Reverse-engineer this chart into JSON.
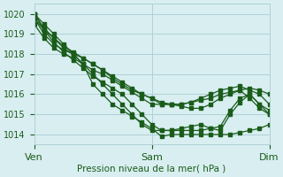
{
  "title": "Pression niveau de la mer( hPa )",
  "bg_color": "#d8eef0",
  "grid_color": "#b0d0d8",
  "line_color": "#1a5c1a",
  "marker_color": "#1a5c1a",
  "xtick_labels": [
    "Ven",
    "Sam",
    "Dim"
  ],
  "xtick_positions": [
    0,
    48,
    96
  ],
  "ylim": [
    1013.5,
    1020.5
  ],
  "yticks": [
    1014,
    1015,
    1016,
    1017,
    1018,
    1019,
    1020
  ],
  "xlim": [
    0,
    96
  ],
  "series": [
    {
      "x": [
        0,
        4,
        8,
        12,
        16,
        20,
        24,
        28,
        32,
        36,
        40,
        44,
        48,
        52,
        56,
        60,
        64,
        68,
        72,
        76,
        80,
        84,
        88,
        92,
        96
      ],
      "y": [
        1020,
        1019.5,
        1019.0,
        1018.5,
        1018.0,
        1017.5,
        1016.5,
        1016.0,
        1015.5,
        1015.2,
        1014.9,
        1014.6,
        1014.3,
        1013.9,
        1014.0,
        1014.0,
        1014.0,
        1014.0,
        1014.0,
        1014.0,
        1014.0,
        1014.1,
        1014.2,
        1014.3,
        1014.5
      ]
    },
    {
      "x": [
        0,
        4,
        8,
        12,
        16,
        20,
        24,
        28,
        32,
        36,
        40,
        44,
        48,
        52,
        56,
        60,
        64,
        68,
        72,
        76,
        80,
        84,
        88,
        92,
        96
      ],
      "y": [
        1020,
        1019.3,
        1018.8,
        1018.3,
        1018.0,
        1017.5,
        1017.0,
        1016.5,
        1016.0,
        1015.5,
        1015.0,
        1014.5,
        1014.2,
        1014.2,
        1014.2,
        1014.2,
        1014.2,
        1014.2,
        1014.3,
        1014.4,
        1015.2,
        1015.8,
        1016.0,
        1015.5,
        1015.2
      ]
    },
    {
      "x": [
        0,
        4,
        8,
        12,
        16,
        20,
        24,
        28,
        32,
        36,
        40,
        44,
        48,
        52,
        56,
        60,
        64,
        68,
        72,
        76,
        80,
        84,
        88,
        92,
        96
      ],
      "y": [
        1019.8,
        1019.0,
        1018.5,
        1018.2,
        1018.0,
        1017.8,
        1017.5,
        1017.2,
        1016.8,
        1016.5,
        1016.2,
        1016.0,
        1015.8,
        1015.5,
        1015.5,
        1015.5,
        1015.6,
        1015.7,
        1015.8,
        1016.0,
        1016.1,
        1016.2,
        1016.3,
        1016.2,
        1016.0
      ]
    },
    {
      "x": [
        0,
        4,
        8,
        12,
        16,
        20,
        24,
        28,
        32,
        36,
        40,
        44,
        48,
        52,
        56,
        60,
        64,
        68,
        72,
        76,
        80,
        84,
        88,
        92,
        96
      ],
      "y": [
        1019.5,
        1018.8,
        1018.3,
        1018.0,
        1017.8,
        1017.5,
        1017.2,
        1017.0,
        1016.7,
        1016.4,
        1016.1,
        1015.8,
        1015.5,
        1015.5,
        1015.5,
        1015.5,
        1015.6,
        1015.8,
        1016.0,
        1016.2,
        1016.3,
        1016.4,
        1016.2,
        1016.0,
        1015.5
      ]
    },
    {
      "x": [
        0,
        4,
        8,
        12,
        16,
        20,
        24,
        28,
        32,
        36,
        40,
        44,
        48,
        52,
        56,
        60,
        64,
        68,
        72,
        76,
        80,
        84,
        88,
        92,
        96
      ],
      "y": [
        1019.8,
        1019.2,
        1018.8,
        1018.4,
        1018.1,
        1017.8,
        1017.5,
        1017.2,
        1016.9,
        1016.6,
        1016.3,
        1016.0,
        1015.8,
        1015.6,
        1015.5,
        1015.4,
        1015.3,
        1015.3,
        1015.5,
        1015.8,
        1016.0,
        1016.2,
        1015.8,
        1015.3,
        1015.0
      ]
    },
    {
      "x": [
        0,
        4,
        8,
        12,
        16,
        20,
        24,
        28,
        32,
        36,
        40,
        44,
        48,
        52,
        56,
        60,
        64,
        68,
        72,
        76,
        80,
        84,
        88,
        92,
        96
      ],
      "y": [
        1020,
        1019.2,
        1018.6,
        1018.1,
        1017.7,
        1017.3,
        1016.9,
        1016.6,
        1016.3,
        1016.0,
        1015.5,
        1015.0,
        1014.5,
        1014.2,
        1014.2,
        1014.3,
        1014.4,
        1014.5,
        1014.3,
        1014.2,
        1015.0,
        1015.6,
        1016.0,
        1015.5,
        1015.0
      ]
    }
  ]
}
